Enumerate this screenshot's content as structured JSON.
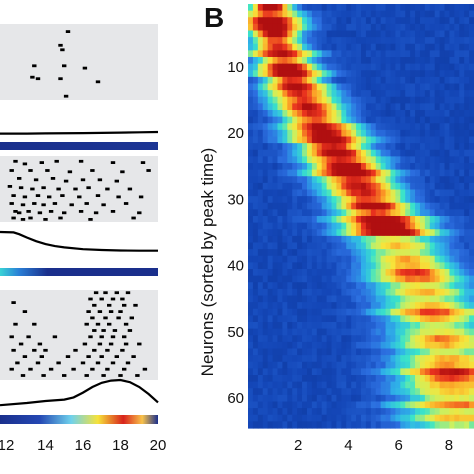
{
  "panel_label": "B",
  "colors": {
    "raster_bg": "#e6e7e9",
    "spike": "#000000",
    "trace": "#000000"
  },
  "chart_data": [
    {
      "type": "scatter",
      "name": "raster-1",
      "xlim": [
        12,
        20
      ],
      "spikes": [
        [
          15.2,
          0.1
        ],
        [
          14.8,
          0.28
        ],
        [
          14.9,
          0.34
        ],
        [
          15.0,
          0.55
        ],
        [
          13.4,
          0.55
        ],
        [
          16.1,
          0.58
        ],
        [
          13.6,
          0.72
        ],
        [
          14.8,
          0.72
        ],
        [
          16.8,
          0.76
        ],
        [
          13.3,
          0.7
        ],
        [
          15.1,
          0.95
        ]
      ]
    },
    {
      "type": "line",
      "name": "trace-1",
      "x": [
        12,
        13,
        14,
        16,
        18,
        19,
        20
      ],
      "y": [
        0.3,
        0.3,
        0.32,
        0.36,
        0.42,
        0.46,
        0.5
      ]
    },
    {
      "type": "scatter",
      "name": "raster-2",
      "xlim": [
        12,
        20
      ],
      "spikes": [
        [
          12.4,
          0.08
        ],
        [
          12.9,
          0.12
        ],
        [
          13.8,
          0.1
        ],
        [
          14.6,
          0.08
        ],
        [
          15.9,
          0.08
        ],
        [
          17.6,
          0.1
        ],
        [
          19.2,
          0.1
        ],
        [
          12.2,
          0.22
        ],
        [
          13.2,
          0.22
        ],
        [
          14.1,
          0.22
        ],
        [
          15.3,
          0.24
        ],
        [
          16.5,
          0.22
        ],
        [
          18.1,
          0.24
        ],
        [
          19.5,
          0.22
        ],
        [
          12.6,
          0.34
        ],
        [
          13.5,
          0.36
        ],
        [
          14.4,
          0.34
        ],
        [
          15.1,
          0.38
        ],
        [
          16.0,
          0.36
        ],
        [
          16.9,
          0.36
        ],
        [
          17.8,
          0.38
        ],
        [
          12.1,
          0.46
        ],
        [
          12.7,
          0.48
        ],
        [
          13.3,
          0.5
        ],
        [
          13.9,
          0.48
        ],
        [
          14.7,
          0.5
        ],
        [
          15.6,
          0.5
        ],
        [
          16.3,
          0.48
        ],
        [
          17.3,
          0.5
        ],
        [
          18.5,
          0.5
        ],
        [
          12.3,
          0.6
        ],
        [
          12.9,
          0.62
        ],
        [
          13.6,
          0.6
        ],
        [
          14.2,
          0.62
        ],
        [
          14.9,
          0.6
        ],
        [
          15.8,
          0.62
        ],
        [
          16.8,
          0.6
        ],
        [
          17.9,
          0.62
        ],
        [
          19.1,
          0.62
        ],
        [
          12.2,
          0.72
        ],
        [
          12.8,
          0.74
        ],
        [
          13.4,
          0.72
        ],
        [
          13.9,
          0.74
        ],
        [
          14.5,
          0.72
        ],
        [
          15.4,
          0.74
        ],
        [
          16.2,
          0.72
        ],
        [
          17.1,
          0.74
        ],
        [
          18.3,
          0.72
        ],
        [
          12.4,
          0.84
        ],
        [
          12.6,
          0.86
        ],
        [
          13.1,
          0.84
        ],
        [
          13.7,
          0.86
        ],
        [
          14.3,
          0.84
        ],
        [
          15.0,
          0.86
        ],
        [
          15.9,
          0.84
        ],
        [
          16.7,
          0.86
        ],
        [
          17.6,
          0.84
        ],
        [
          19.0,
          0.86
        ],
        [
          12.3,
          0.94
        ],
        [
          12.8,
          0.96
        ],
        [
          13.2,
          0.94
        ],
        [
          14.0,
          0.96
        ],
        [
          14.8,
          0.94
        ],
        [
          16.4,
          0.96
        ],
        [
          18.7,
          0.94
        ]
      ]
    },
    {
      "type": "line",
      "name": "trace-2",
      "x": [
        12,
        12.3,
        12.6,
        13,
        13.5,
        14,
        14.5,
        15,
        16,
        17,
        18,
        19,
        20
      ],
      "y": [
        1.0,
        0.98,
        0.9,
        0.75,
        0.58,
        0.45,
        0.36,
        0.3,
        0.22,
        0.18,
        0.16,
        0.15,
        0.15
      ]
    },
    {
      "type": "scatter",
      "name": "raster-3",
      "xlim": [
        12,
        20
      ],
      "spikes": [
        [
          16.7,
          0.03
        ],
        [
          17.2,
          0.03
        ],
        [
          17.8,
          0.03
        ],
        [
          18.4,
          0.03
        ],
        [
          16.4,
          0.1
        ],
        [
          17.0,
          0.1
        ],
        [
          17.6,
          0.1
        ],
        [
          18.1,
          0.1
        ],
        [
          12.3,
          0.14
        ],
        [
          16.6,
          0.17
        ],
        [
          17.4,
          0.17
        ],
        [
          18.2,
          0.17
        ],
        [
          18.8,
          0.17
        ],
        [
          12.9,
          0.24
        ],
        [
          16.3,
          0.24
        ],
        [
          16.9,
          0.24
        ],
        [
          17.5,
          0.24
        ],
        [
          18.0,
          0.24
        ],
        [
          16.5,
          0.31
        ],
        [
          17.2,
          0.31
        ],
        [
          17.9,
          0.31
        ],
        [
          18.6,
          0.31
        ],
        [
          12.4,
          0.38
        ],
        [
          13.4,
          0.38
        ],
        [
          16.2,
          0.38
        ],
        [
          16.8,
          0.38
        ],
        [
          17.4,
          0.38
        ],
        [
          18.3,
          0.38
        ],
        [
          16.6,
          0.45
        ],
        [
          17.1,
          0.45
        ],
        [
          17.7,
          0.45
        ],
        [
          18.5,
          0.45
        ],
        [
          12.2,
          0.52
        ],
        [
          13.1,
          0.52
        ],
        [
          14.5,
          0.52
        ],
        [
          16.4,
          0.52
        ],
        [
          17.0,
          0.52
        ],
        [
          17.6,
          0.52
        ],
        [
          18.2,
          0.52
        ],
        [
          12.7,
          0.6
        ],
        [
          13.7,
          0.6
        ],
        [
          16.1,
          0.6
        ],
        [
          16.9,
          0.6
        ],
        [
          17.5,
          0.6
        ],
        [
          18.3,
          0.6
        ],
        [
          19.0,
          0.6
        ],
        [
          12.3,
          0.67
        ],
        [
          13.4,
          0.67
        ],
        [
          14.0,
          0.67
        ],
        [
          15.6,
          0.67
        ],
        [
          16.6,
          0.67
        ],
        [
          17.3,
          0.67
        ],
        [
          18.1,
          0.67
        ],
        [
          12.9,
          0.74
        ],
        [
          13.8,
          0.74
        ],
        [
          15.2,
          0.74
        ],
        [
          16.3,
          0.74
        ],
        [
          17.0,
          0.74
        ],
        [
          17.8,
          0.74
        ],
        [
          18.7,
          0.74
        ],
        [
          12.5,
          0.81
        ],
        [
          13.6,
          0.81
        ],
        [
          14.7,
          0.81
        ],
        [
          16.0,
          0.81
        ],
        [
          16.8,
          0.81
        ],
        [
          17.6,
          0.81
        ],
        [
          18.4,
          0.81
        ],
        [
          12.2,
          0.88
        ],
        [
          13.2,
          0.88
        ],
        [
          14.3,
          0.88
        ],
        [
          15.5,
          0.88
        ],
        [
          16.5,
          0.88
        ],
        [
          17.3,
          0.88
        ],
        [
          18.2,
          0.88
        ],
        [
          19.3,
          0.88
        ],
        [
          12.8,
          0.95
        ],
        [
          13.9,
          0.95
        ],
        [
          15.0,
          0.95
        ],
        [
          16.2,
          0.95
        ],
        [
          17.1,
          0.95
        ],
        [
          18.0,
          0.95
        ],
        [
          18.9,
          0.95
        ]
      ]
    },
    {
      "type": "line",
      "name": "trace-3",
      "x": [
        12,
        13,
        14,
        15,
        15.5,
        16,
        16.5,
        17,
        17.5,
        18,
        18.5,
        19,
        19.5,
        20
      ],
      "y": [
        0.1,
        0.18,
        0.25,
        0.3,
        0.38,
        0.55,
        0.75,
        0.9,
        0.98,
        1.0,
        0.92,
        0.75,
        0.5,
        0.2
      ]
    },
    {
      "type": "heatmap",
      "name": "sorted-tuning",
      "xlim": [
        0,
        9
      ],
      "xticks": [
        2,
        4,
        6,
        8
      ],
      "ylim": [
        1,
        64
      ],
      "yticks": [
        10,
        20,
        30,
        40,
        50,
        60
      ],
      "ylabel": "Neurons (sorted by peak time)",
      "n_rows": 64,
      "peak_start": 0.9,
      "peak_end": 8.3,
      "colorscale": [
        "#0a2d8a",
        "#1447b8",
        "#2c6fe0",
        "#2fb3e8",
        "#3be4c8",
        "#c8f062",
        "#f7e43a",
        "#fb9a26",
        "#e8321e",
        "#b00f10"
      ]
    }
  ],
  "axes": {
    "bottom_ticks": [
      "12",
      "14",
      "16",
      "18",
      "20"
    ]
  }
}
